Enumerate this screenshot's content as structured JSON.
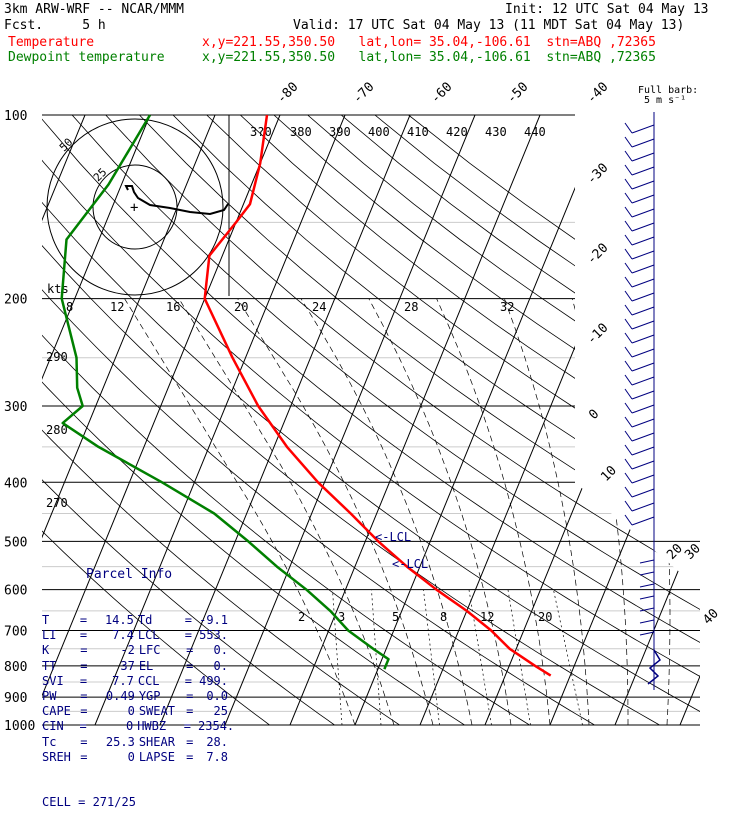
{
  "header": {
    "model": "3km ARW-WRF -- NCAR/MMM",
    "init": "Init: 12 UTC Sat 04 May 13",
    "fcst": "Fcst.     5 h",
    "valid": "Valid: 17 UTC Sat 04 May 13 (11 MDT Sat 04 May 13)",
    "temp_label": "Temperature",
    "temp_loc": "x,y=221.55,350.50   lat,lon= 35.04,-106.61  stn=ABQ ,72365",
    "dew_label": "Dewpoint temperature",
    "dew_loc": "x,y=221.55,350.50   lat,lon= 35.04,-106.61  stn=ABQ ,72365"
  },
  "colors": {
    "temperature": "#ff0000",
    "dewpoint": "#008000",
    "barbs": "#000080",
    "grid": "#000000"
  },
  "chart_data": {
    "type": "line",
    "title": "",
    "xlabel": "",
    "ylabel": "",
    "pressure_ticks": [
      "100",
      "200",
      "300",
      "400",
      "500",
      "600",
      "700",
      "800",
      "900",
      "1000"
    ],
    "pressure_levels": [
      100,
      200,
      300,
      400,
      500,
      600,
      700,
      800,
      900,
      1000
    ],
    "isotherm_labels_top": [
      "-80",
      "-70",
      "-60",
      "-50",
      "-40"
    ],
    "isotherm_labels_right": [
      "-30",
      "-20",
      "-10",
      "0",
      "10",
      "20",
      "30",
      "40"
    ],
    "theta_labels_top": [
      "380",
      "390",
      "400",
      "410",
      "420",
      "430",
      "440"
    ],
    "theta_label_first": "3?0",
    "theta_labels_left": [
      "290",
      "280",
      "270"
    ],
    "mixing_ratio_labels": [
      "2",
      "3",
      "5",
      "8",
      "12",
      "20"
    ],
    "hodograph_speed_labels": [
      "8",
      "12",
      "16",
      "20",
      "24",
      "28",
      "32"
    ],
    "hodograph_ring_labels": [
      "25",
      "50"
    ],
    "hodograph_units": "kts",
    "barb_legend": "Full barb:\n5 m s⁻¹",
    "lcl_label_1": "<-LCL",
    "lcl_label_2": "<-LCL",
    "series": [
      {
        "name": "Temperature",
        "points_p_T": [
          [
            100,
            -62
          ],
          [
            120,
            -60
          ],
          [
            140,
            -59
          ],
          [
            150,
            -60
          ],
          [
            170,
            -62
          ],
          [
            200,
            -60
          ],
          [
            250,
            -52
          ],
          [
            300,
            -45
          ],
          [
            350,
            -38
          ],
          [
            400,
            -31
          ],
          [
            450,
            -24
          ],
          [
            500,
            -18
          ],
          [
            550,
            -12
          ],
          [
            600,
            -6
          ],
          [
            650,
            0
          ],
          [
            700,
            5
          ],
          [
            750,
            9
          ],
          [
            800,
            14
          ],
          [
            830,
            17
          ]
        ]
      },
      {
        "name": "Dewpoint temperature",
        "points_p_T": [
          [
            100,
            -80
          ],
          [
            130,
            -82
          ],
          [
            160,
            -85
          ],
          [
            200,
            -82
          ],
          [
            250,
            -76
          ],
          [
            280,
            -74
          ],
          [
            300,
            -72
          ],
          [
            320,
            -74
          ],
          [
            350,
            -67
          ],
          [
            400,
            -55
          ],
          [
            450,
            -45
          ],
          [
            500,
            -38
          ],
          [
            550,
            -32
          ],
          [
            600,
            -26
          ],
          [
            650,
            -21
          ],
          [
            700,
            -17
          ],
          [
            750,
            -12
          ],
          [
            780,
            -9
          ],
          [
            800,
            -9
          ],
          [
            810,
            -9
          ]
        ]
      }
    ]
  },
  "parcel": {
    "title": "Parcel Info",
    "rows": [
      {
        "k1": "T",
        "v1": "14.5",
        "k2": "Td",
        "v2": "-9.1"
      },
      {
        "k1": "LI",
        "v1": "7.4",
        "k2": "LCL",
        "v2": "553."
      },
      {
        "k1": "K",
        "v1": "-2",
        "k2": "LFC",
        "v2": "0."
      },
      {
        "k1": "TT",
        "v1": "37",
        "k2": "EL",
        "v2": "0."
      },
      {
        "k1": "SVI",
        "v1": "7.7",
        "k2": "CCL",
        "v2": "499."
      },
      {
        "k1": "PW",
        "v1": "0.49",
        "k2": "YGP",
        "v2": "0.0"
      },
      {
        "k1": "CAPE",
        "v1": "0",
        "k2": "SWEAT",
        "v2": "25"
      },
      {
        "k1": "CIN",
        "v1": "0",
        "k2": "HWBZ",
        "v2": "2354."
      },
      {
        "k1": "Tc",
        "v1": "25.3",
        "k2": "SHEAR",
        "v2": "28."
      },
      {
        "k1": "SREH",
        "v1": "0",
        "k2": "LAPSE",
        "v2": "7.8"
      }
    ],
    "cell": "CELL = 271/25"
  }
}
